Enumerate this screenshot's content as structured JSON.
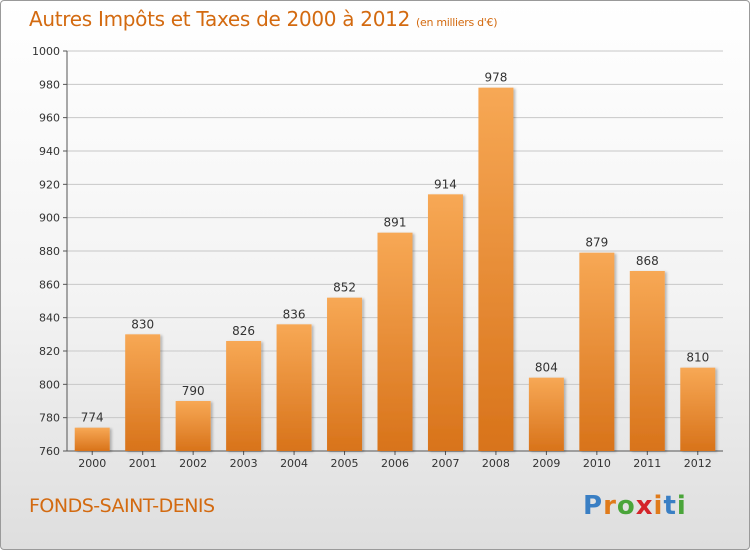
{
  "header": {
    "title": "Autres Impôts et Taxes de 2000 à 2012",
    "unit": "(en milliers d'€)"
  },
  "footer": {
    "commune": "FONDS-SAINT-DENIS",
    "logo_text": "Proxiti"
  },
  "colors": {
    "accent": "#d36a10",
    "bar_light": "#f7a855",
    "bar_dark": "#d8731a",
    "logo_letters": [
      "#3a7fc4",
      "#e07b1b",
      "#4aa53a",
      "#d4242a",
      "#e07b1b",
      "#3a7fc4",
      "#4aa53a"
    ]
  },
  "chart_data": {
    "type": "bar",
    "categories": [
      "2000",
      "2001",
      "2002",
      "2003",
      "2004",
      "2005",
      "2006",
      "2007",
      "2008",
      "2009",
      "2010",
      "2011",
      "2012"
    ],
    "values": [
      774,
      830,
      790,
      826,
      836,
      852,
      891,
      914,
      978,
      804,
      879,
      868,
      810
    ],
    "ylim": [
      760,
      1000
    ],
    "yticks": [
      760,
      780,
      800,
      820,
      840,
      860,
      880,
      900,
      920,
      940,
      960,
      980,
      1000
    ],
    "grid": "horizontal",
    "legend": "none"
  }
}
